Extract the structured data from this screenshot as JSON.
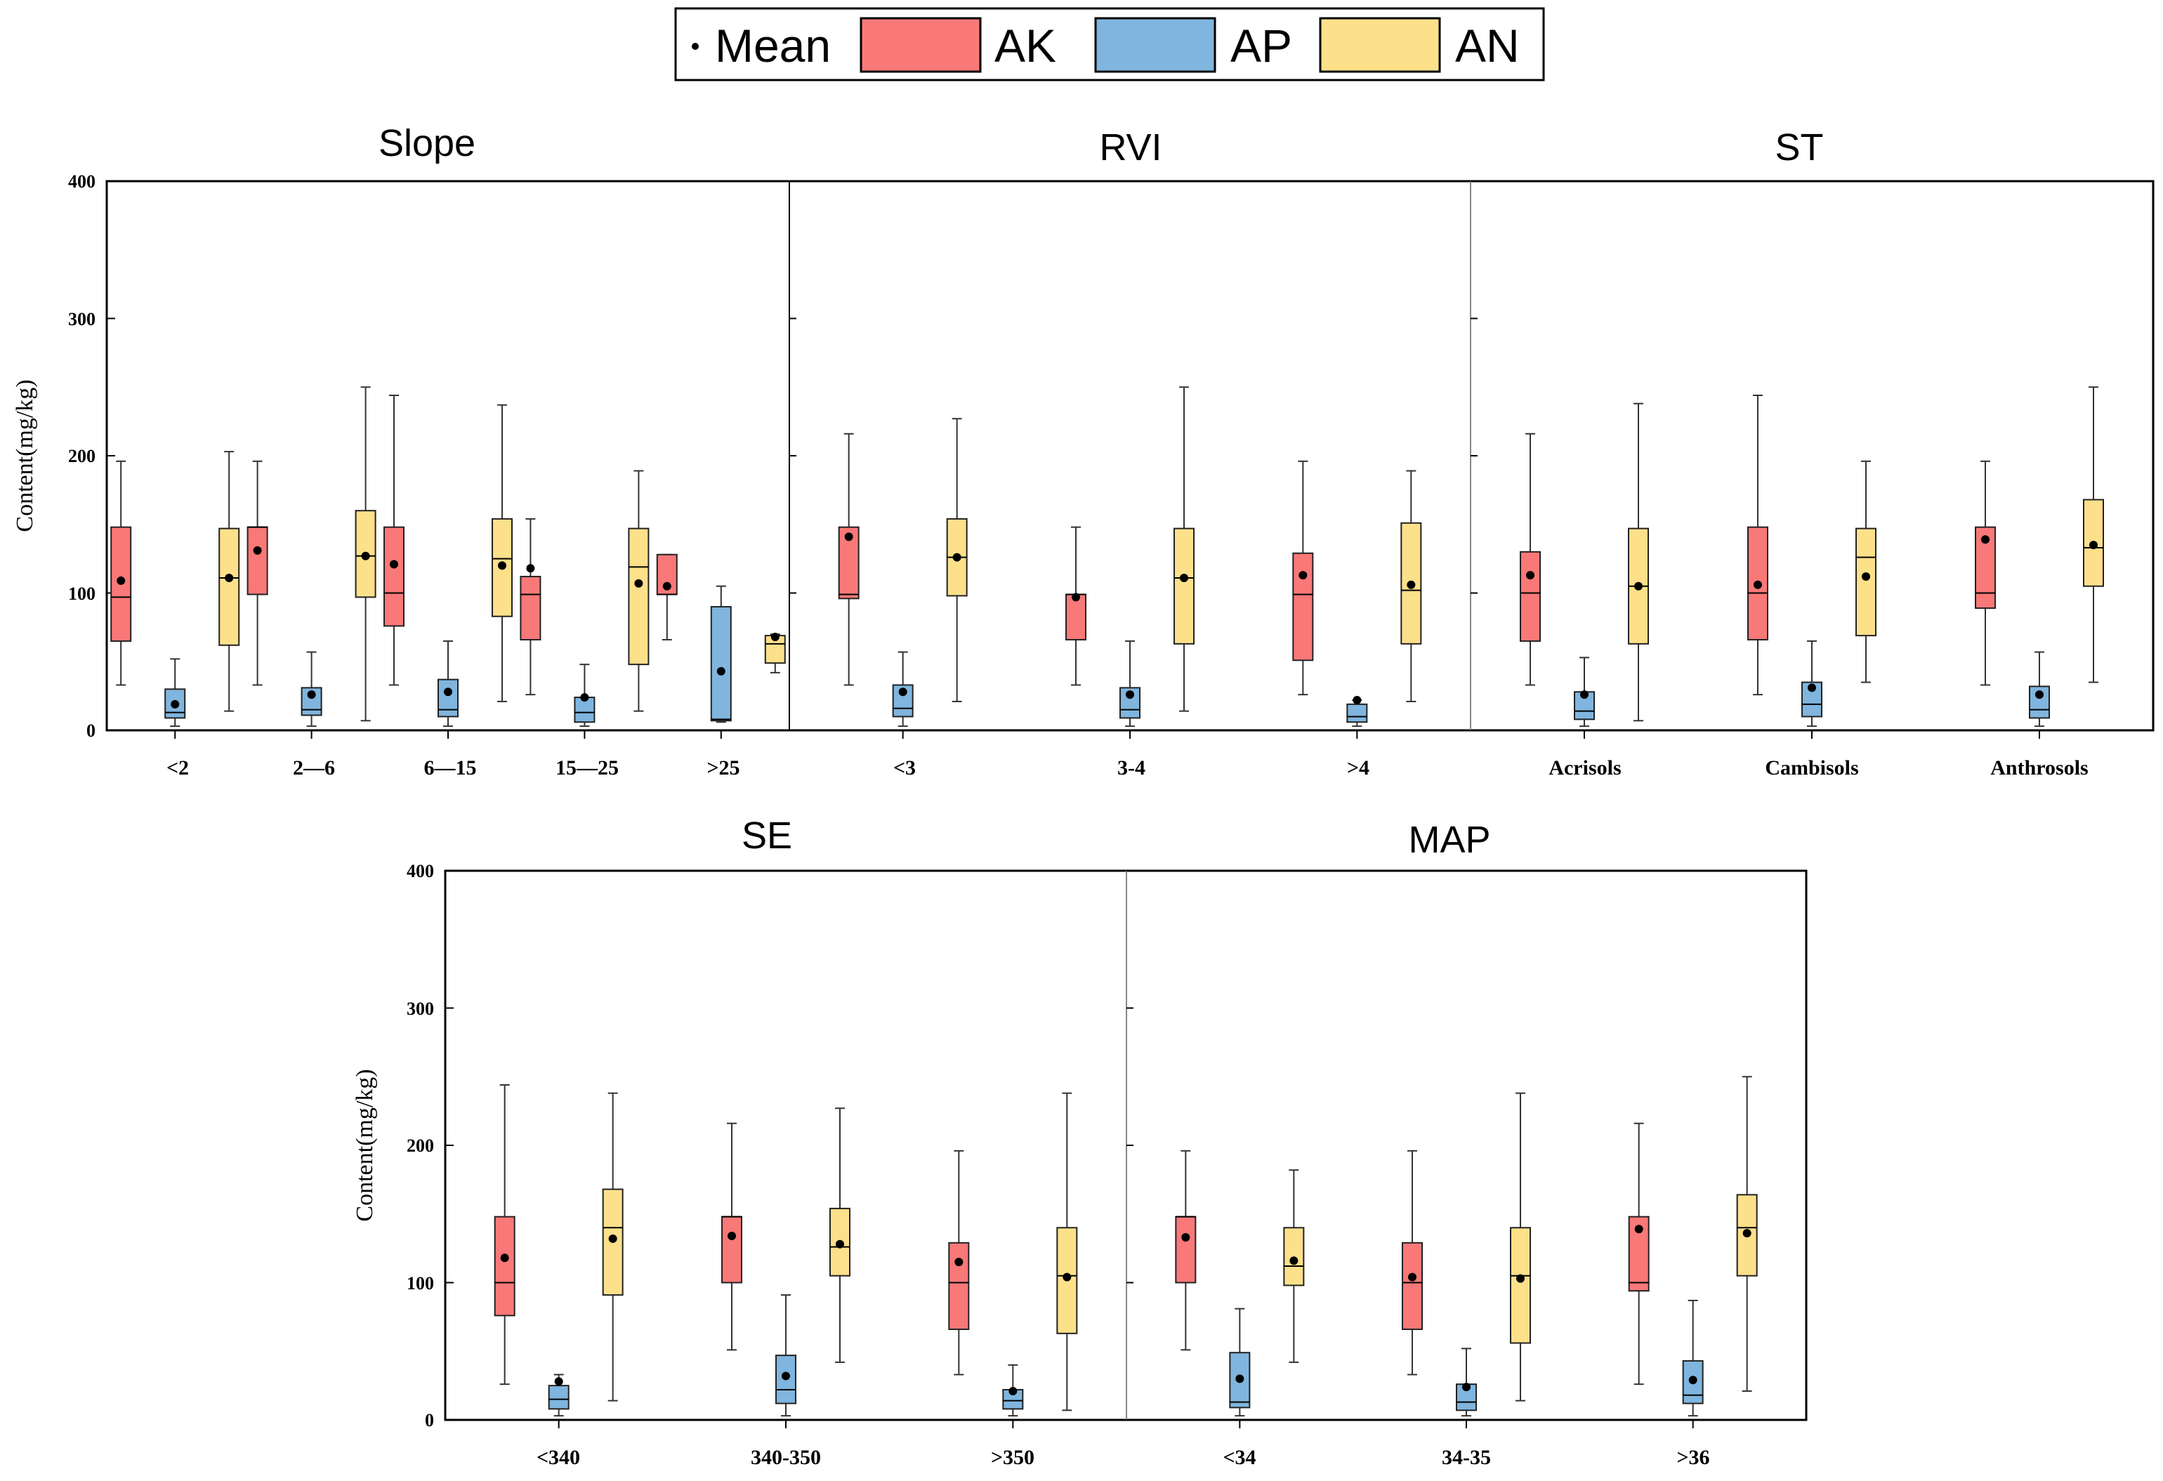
{
  "chart_data": {
    "type": "box",
    "legend": {
      "mean_label": "Mean",
      "series": [
        {
          "key": "AK",
          "name": "AK",
          "color": "#f97878"
        },
        {
          "key": "AP",
          "name": "AP",
          "color": "#7fb5de"
        },
        {
          "key": "AN",
          "name": "AN",
          "color": "#fde08a"
        }
      ]
    },
    "ylabel": "Content(mg/kg)",
    "ylim": [
      0,
      400
    ],
    "yticks": [
      0,
      100,
      200,
      300,
      400
    ],
    "groups": [
      {
        "title": "Slope",
        "categories": [
          {
            "label": "<2",
            "AK": {
              "min": 33,
              "q1": 65,
              "median": 97,
              "q3": 148,
              "max": 196,
              "mean": 109
            },
            "AP": {
              "min": 3,
              "q1": 9,
              "median": 13,
              "q3": 30,
              "max": 52,
              "mean": 19
            },
            "AN": {
              "min": 14,
              "q1": 62,
              "median": 111,
              "q3": 147,
              "max": 203,
              "mean": 111
            }
          },
          {
            "label": "2—6",
            "AK": {
              "min": 33,
              "q1": 99,
              "median": 148,
              "q3": 148,
              "max": 196,
              "mean": 131
            },
            "AP": {
              "min": 3,
              "q1": 11,
              "median": 15,
              "q3": 31,
              "max": 57,
              "mean": 26
            },
            "AN": {
              "min": 7,
              "q1": 97,
              "median": 127,
              "q3": 160,
              "max": 250,
              "mean": 127
            }
          },
          {
            "label": "6—15",
            "AK": {
              "min": 33,
              "q1": 76,
              "median": 100,
              "q3": 148,
              "max": 244,
              "mean": 121
            },
            "AP": {
              "min": 3,
              "q1": 10,
              "median": 15,
              "q3": 37,
              "max": 65,
              "mean": 28
            },
            "AN": {
              "min": 21,
              "q1": 83,
              "median": 125,
              "q3": 154,
              "max": 237,
              "mean": 120
            }
          },
          {
            "label": "15—25",
            "AK": {
              "min": 26,
              "q1": 66,
              "median": 99,
              "q3": 112,
              "max": 154,
              "mean": 118
            },
            "AP": {
              "min": 3,
              "q1": 6,
              "median": 13,
              "q3": 24,
              "max": 48,
              "mean": 24
            },
            "AN": {
              "min": 14,
              "q1": 48,
              "median": 119,
              "q3": 147,
              "max": 189,
              "mean": 107
            }
          },
          {
            "label": ">25",
            "AK": {
              "min": 66,
              "q1": 99,
              "median": 99,
              "q3": 128,
              "max": 128,
              "mean": 105
            },
            "AP": {
              "min": 6,
              "q1": 7,
              "median": 8,
              "q3": 90,
              "max": 105,
              "mean": 43
            },
            "AN": {
              "min": 42,
              "q1": 49,
              "median": 63,
              "q3": 69,
              "max": 70,
              "mean": 68
            }
          }
        ]
      },
      {
        "title": "RVI",
        "categories": [
          {
            "label": "<3",
            "AK": {
              "min": 33,
              "q1": 96,
              "median": 99,
              "q3": 148,
              "max": 216,
              "mean": 141
            },
            "AP": {
              "min": 3,
              "q1": 10,
              "median": 16,
              "q3": 33,
              "max": 57,
              "mean": 28
            },
            "AN": {
              "min": 21,
              "q1": 98,
              "median": 126,
              "q3": 154,
              "max": 227,
              "mean": 126
            }
          },
          {
            "label": "3-4",
            "AK": {
              "min": 33,
              "q1": 66,
              "median": 99,
              "q3": 99,
              "max": 148,
              "mean": 97
            },
            "AP": {
              "min": 3,
              "q1": 9,
              "median": 15,
              "q3": 31,
              "max": 65,
              "mean": 26
            },
            "AN": {
              "min": 14,
              "q1": 63,
              "median": 111,
              "q3": 147,
              "max": 250,
              "mean": 111
            }
          },
          {
            "label": ">4",
            "AK": {
              "min": 26,
              "q1": 51,
              "median": 99,
              "q3": 129,
              "max": 196,
              "mean": 113
            },
            "AP": {
              "min": 3,
              "q1": 6,
              "median": 10,
              "q3": 19,
              "max": 22,
              "mean": 22
            },
            "AN": {
              "min": 21,
              "q1": 63,
              "median": 102,
              "q3": 151,
              "max": 189,
              "mean": 106
            }
          }
        ]
      },
      {
        "title": "ST",
        "categories": [
          {
            "label": "Acrisols",
            "AK": {
              "min": 33,
              "q1": 65,
              "median": 100,
              "q3": 130,
              "max": 216,
              "mean": 113
            },
            "AP": {
              "min": 3,
              "q1": 8,
              "median": 14,
              "q3": 28,
              "max": 53,
              "mean": 26
            },
            "AN": {
              "min": 7,
              "q1": 63,
              "median": 105,
              "q3": 147,
              "max": 238,
              "mean": 105
            }
          },
          {
            "label": "Cambisols",
            "AK": {
              "min": 26,
              "q1": 66,
              "median": 100,
              "q3": 148,
              "max": 244,
              "mean": 106
            },
            "AP": {
              "min": 3,
              "q1": 10,
              "median": 19,
              "q3": 35,
              "max": 65,
              "mean": 31
            },
            "AN": {
              "min": 35,
              "q1": 69,
              "median": 126,
              "q3": 147,
              "max": 196,
              "mean": 112
            }
          },
          {
            "label": "Anthrosols",
            "AK": {
              "min": 33,
              "q1": 89,
              "median": 100,
              "q3": 148,
              "max": 196,
              "mean": 139
            },
            "AP": {
              "min": 3,
              "q1": 9,
              "median": 15,
              "q3": 32,
              "max": 57,
              "mean": 26
            },
            "AN": {
              "min": 35,
              "q1": 105,
              "median": 133,
              "q3": 168,
              "max": 250,
              "mean": 135
            }
          }
        ]
      },
      {
        "title": "SE",
        "categories": [
          {
            "label": "<340",
            "AK": {
              "min": 26,
              "q1": 76,
              "median": 100,
              "q3": 148,
              "max": 244,
              "mean": 118
            },
            "AP": {
              "min": 3,
              "q1": 8,
              "median": 15,
              "q3": 25,
              "max": 33,
              "mean": 28
            },
            "AN": {
              "min": 14,
              "q1": 91,
              "median": 140,
              "q3": 168,
              "max": 238,
              "mean": 132
            }
          },
          {
            "label": "340-350",
            "AK": {
              "min": 51,
              "q1": 100,
              "median": 148,
              "q3": 148,
              "max": 216,
              "mean": 134
            },
            "AP": {
              "min": 3,
              "q1": 12,
              "median": 22,
              "q3": 47,
              "max": 91,
              "mean": 32
            },
            "AN": {
              "min": 42,
              "q1": 105,
              "median": 126,
              "q3": 154,
              "max": 227,
              "mean": 128
            }
          },
          {
            "label": ">350",
            "AK": {
              "min": 33,
              "q1": 66,
              "median": 100,
              "q3": 129,
              "max": 196,
              "mean": 115
            },
            "AP": {
              "min": 3,
              "q1": 8,
              "median": 14,
              "q3": 22,
              "max": 40,
              "mean": 21
            },
            "AN": {
              "min": 7,
              "q1": 63,
              "median": 105,
              "q3": 140,
              "max": 238,
              "mean": 104
            }
          }
        ]
      },
      {
        "title": "MAP",
        "categories": [
          {
            "label": "<34",
            "AK": {
              "min": 51,
              "q1": 100,
              "median": 148,
              "q3": 148,
              "max": 196,
              "mean": 133
            },
            "AP": {
              "min": 3,
              "q1": 9,
              "median": 13,
              "q3": 49,
              "max": 81,
              "mean": 30
            },
            "AN": {
              "min": 42,
              "q1": 98,
              "median": 112,
              "q3": 140,
              "max": 182,
              "mean": 116
            }
          },
          {
            "label": "34-35",
            "AK": {
              "min": 33,
              "q1": 66,
              "median": 100,
              "q3": 129,
              "max": 196,
              "mean": 104
            },
            "AP": {
              "min": 3,
              "q1": 7,
              "median": 13,
              "q3": 26,
              "max": 52,
              "mean": 24
            },
            "AN": {
              "min": 14,
              "q1": 56,
              "median": 105,
              "q3": 140,
              "max": 238,
              "mean": 103
            }
          },
          {
            "label": ">36",
            "AK": {
              "min": 26,
              "q1": 94,
              "median": 100,
              "q3": 148,
              "max": 216,
              "mean": 139
            },
            "AP": {
              "min": 3,
              "q1": 12,
              "median": 18,
              "q3": 43,
              "max": 87,
              "mean": 29
            },
            "AN": {
              "min": 21,
              "q1": 105,
              "median": 140,
              "q3": 164,
              "max": 250,
              "mean": 136
            }
          }
        ]
      }
    ]
  }
}
